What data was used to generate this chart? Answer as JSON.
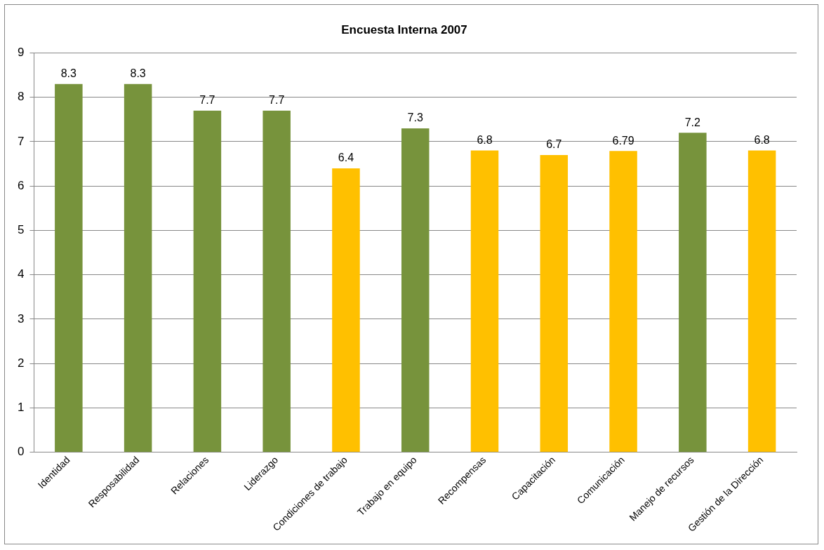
{
  "chart_data": {
    "type": "bar",
    "title": "Encuesta Interna 2007",
    "categories": [
      "Identidad",
      "Resposabilidad",
      "Relaciones",
      "Liderazgo",
      "Condiciones de trabajo",
      "Trabajo en equipo",
      "Recompensas",
      "Capacitación",
      "Comunicación",
      "Manejo de recursos",
      "Gestión de la Dirección"
    ],
    "values": [
      8.3,
      8.3,
      7.7,
      7.7,
      6.4,
      7.3,
      6.8,
      6.7,
      6.79,
      7.2,
      6.8
    ],
    "colors": [
      "#77933c",
      "#77933c",
      "#77933c",
      "#77933c",
      "#ffc000",
      "#77933c",
      "#ffc000",
      "#ffc000",
      "#ffc000",
      "#77933c",
      "#ffc000"
    ],
    "ylim": [
      0,
      9
    ],
    "yticks": [
      0,
      1,
      2,
      3,
      4,
      5,
      6,
      7,
      8,
      9
    ],
    "grid": "y",
    "data_labels": true,
    "legend": false
  }
}
